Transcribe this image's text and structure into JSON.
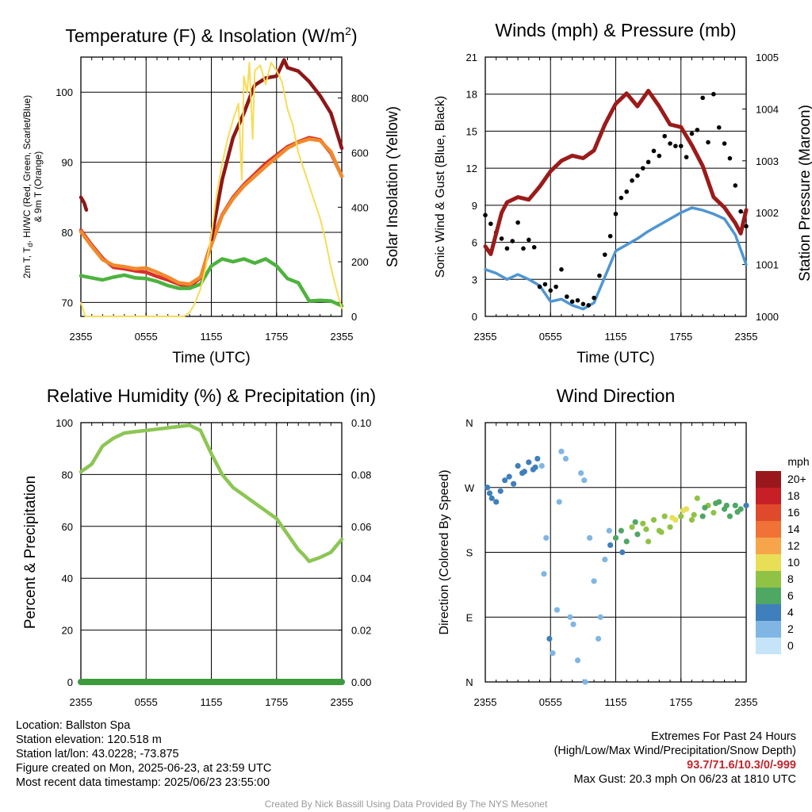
{
  "colors": {
    "red": "#d9302c",
    "green": "#4db33e",
    "scarlet": "#8e1717",
    "blue_hi": "#4a7fc1",
    "orange": "#f08a2c",
    "yellow": "#f7dc56",
    "maroon": "#9b1b1b",
    "wind_blue": "#4f96d2",
    "gust_black": "#000000",
    "rh_green": "#8cc653",
    "precip_green": "#3d9a3d"
  },
  "chart_data": [
    {
      "id": "temperature",
      "type": "line",
      "title": "Temperature (F) & Insolation (W/m²)",
      "title_main": "Temperature (F) & Insolation (W/m",
      "title_sup": "2",
      "xlabel": "Time (UTC)",
      "ylabel_lines": [
        "2m T, T",
        "d",
        ", HI/WC (Red, Green, Scarlet/Blue)",
        "& 9m T (Orange)"
      ],
      "y2label": "Solar Insolation (Yellow)",
      "x_ticks": [
        "2355",
        "0555",
        "1155",
        "1755",
        "2355"
      ],
      "x_range_hours": [
        0,
        24
      ],
      "ylim": [
        68,
        105
      ],
      "y_ticks": [
        70,
        80,
        90,
        100
      ],
      "y2lim": [
        0,
        950
      ],
      "y2_ticks": [
        0,
        200,
        400,
        600,
        800
      ],
      "grid": true,
      "series": [
        {
          "key": "temp_2m",
          "color": "red",
          "x": [
            0,
            1,
            2,
            3,
            4,
            5,
            6,
            7,
            8,
            9,
            10,
            11,
            12,
            13,
            14,
            15,
            16,
            17,
            18,
            19,
            20,
            21,
            22,
            23,
            24
          ],
          "y": [
            80.3,
            78.2,
            76.3,
            75,
            74.8,
            74.5,
            74.3,
            73.7,
            73.2,
            72.6,
            72.2,
            73.5,
            78.5,
            82.5,
            85,
            86.8,
            88.3,
            89.8,
            91,
            92.2,
            92.9,
            93.5,
            93.2,
            91.3,
            88
          ]
        },
        {
          "key": "temp_9m",
          "color": "orange",
          "x": [
            0,
            1,
            2,
            3,
            4,
            5,
            6,
            7,
            8,
            9,
            10,
            11,
            12,
            13,
            14,
            15,
            16,
            17,
            18,
            19,
            20,
            21,
            22,
            23,
            24
          ],
          "y": [
            80.1,
            78,
            76.1,
            75.3,
            75.1,
            74.8,
            74.9,
            74.3,
            73.6,
            72.8,
            72.6,
            73.6,
            78.2,
            82.4,
            84.8,
            86.6,
            88,
            89.4,
            90.7,
            92,
            92.8,
            93.3,
            93.1,
            91.5,
            88
          ]
        },
        {
          "key": "dewpoint",
          "color": "green",
          "x": [
            0,
            1,
            2,
            3,
            4,
            5,
            6,
            7,
            8,
            9,
            10,
            11,
            12,
            13,
            14,
            15,
            16,
            17,
            18,
            19,
            20,
            21,
            22,
            23,
            24
          ],
          "y": [
            73.8,
            73.5,
            73.2,
            73.6,
            73.9,
            73.5,
            73.4,
            73,
            72.4,
            72,
            72,
            72.6,
            75.2,
            76.2,
            75.8,
            76.2,
            75.6,
            76.2,
            75.2,
            73.4,
            72.8,
            70.2,
            70.3,
            70.2,
            69.5
          ]
        },
        {
          "key": "heat_index",
          "color": "scarlet",
          "x": [
            12,
            13,
            14,
            15,
            15.8,
            16,
            17,
            18,
            18.7,
            19,
            20,
            21,
            22,
            23,
            24
          ],
          "y": [
            79,
            87.5,
            93.5,
            97,
            100.3,
            101,
            102,
            102.3,
            104.6,
            103.5,
            103,
            101.5,
            99.5,
            97,
            92
          ]
        },
        {
          "key": "wind_chill",
          "color": "scarlet",
          "x": [
            0,
            0.3,
            0.5
          ],
          "y": [
            85,
            84.2,
            83.2
          ]
        },
        {
          "key": "insolation",
          "color": "yellow",
          "y_axis": "secondary",
          "x": [
            0,
            0.4,
            1,
            2,
            3,
            4,
            5,
            6,
            7,
            8,
            9,
            9.5,
            10,
            10.4,
            11,
            11.5,
            12,
            12.5,
            13,
            13.5,
            14,
            14.5,
            14.8,
            15,
            15.3,
            15.5,
            15.8,
            16,
            16.5,
            17,
            17.5,
            18,
            18.5,
            19,
            19.5,
            20,
            20.5,
            21,
            21.5,
            22,
            22.5,
            23,
            23.5,
            24
          ],
          "y": [
            50,
            0,
            0,
            0,
            0,
            0,
            0,
            0,
            0,
            0,
            0,
            0,
            15,
            40,
            100,
            180,
            300,
            450,
            560,
            650,
            720,
            780,
            500,
            880,
            820,
            930,
            650,
            900,
            920,
            850,
            930,
            900,
            860,
            760,
            700,
            600,
            540,
            480,
            420,
            360,
            280,
            180,
            100,
            30
          ]
        }
      ]
    },
    {
      "id": "winds",
      "type": "line",
      "title": "Winds (mph) & Pressure (mb)",
      "xlabel": "Time (UTC)",
      "ylabel": "Sonic Wind & Gust (Blue, Black)",
      "y2label": "Station Pressure (Maroon)",
      "x_ticks": [
        "2355",
        "0555",
        "1155",
        "1755",
        "2355"
      ],
      "x_range_hours": [
        0,
        24
      ],
      "ylim": [
        0,
        21
      ],
      "y_ticks": [
        0,
        3,
        6,
        9,
        12,
        15,
        18,
        21
      ],
      "y2lim": [
        1000,
        1005
      ],
      "y2_ticks": [
        1000,
        1001,
        1002,
        1003,
        1004,
        1005
      ],
      "grid": true,
      "series": [
        {
          "key": "wind",
          "color": "wind_blue",
          "x": [
            0,
            1,
            2,
            3,
            4,
            5,
            6,
            7,
            8,
            9,
            10,
            11,
            12,
            13,
            14,
            15,
            16,
            17,
            18,
            19,
            20,
            21,
            22,
            23,
            24
          ],
          "y": [
            3.8,
            3.5,
            3,
            3.4,
            3,
            2.5,
            1.2,
            1.4,
            0.9,
            0.6,
            1.1,
            3.2,
            5.3,
            5.8,
            6.3,
            6.9,
            7.4,
            7.9,
            8.4,
            8.8,
            8.6,
            8.3,
            7.9,
            6.6,
            4.2
          ]
        },
        {
          "key": "gust",
          "color": "gust_black",
          "kind": "points",
          "x": [
            0,
            0.5,
            1,
            1.5,
            2,
            2.5,
            3,
            3.5,
            4,
            4.5,
            5,
            5.5,
            6,
            6.5,
            7,
            7.5,
            8,
            8.5,
            9,
            9.5,
            10,
            10.5,
            11,
            11.5,
            12,
            12.5,
            13,
            13.5,
            14,
            14.5,
            15,
            15.5,
            16,
            16.5,
            17,
            17.5,
            18,
            18.5,
            19,
            19.5,
            20,
            20.5,
            21,
            21.5,
            22,
            22.5,
            23,
            23.5,
            24
          ],
          "y": [
            8.2,
            7.5,
            6.8,
            6.3,
            5.5,
            6.1,
            7.6,
            5.5,
            6.2,
            5.6,
            2.4,
            2.6,
            2.1,
            2.4,
            3.8,
            1.6,
            1.2,
            1.3,
            1.0,
            0.9,
            1.5,
            3.3,
            5.0,
            6.5,
            8.3,
            9.6,
            10.1,
            11,
            11.4,
            12,
            12.5,
            13.4,
            13,
            14.6,
            14,
            13.8,
            13.8,
            12.9,
            14.8,
            15.1,
            17.7,
            14.1,
            18,
            15.3,
            14,
            12.8,
            10.6,
            8.5,
            7.3
          ]
        },
        {
          "key": "pressure",
          "color": "maroon",
          "y_axis": "secondary",
          "x": [
            0,
            0.5,
            1,
            1.5,
            2,
            3,
            4,
            5,
            6,
            7,
            8,
            9,
            10,
            11,
            12,
            13,
            14,
            15,
            16,
            17,
            18,
            19,
            20,
            21,
            22,
            23,
            23.5,
            24
          ],
          "y": [
            1001.35,
            1001.2,
            1001.6,
            1002.0,
            1002.2,
            1002.3,
            1002.25,
            1002.5,
            1002.8,
            1003.0,
            1003.1,
            1003.05,
            1003.2,
            1003.7,
            1004.1,
            1004.3,
            1004.05,
            1004.35,
            1004.05,
            1003.7,
            1003.65,
            1003.3,
            1002.9,
            1002.3,
            1002.1,
            1001.8,
            1001.6,
            1002.05
          ]
        }
      ]
    },
    {
      "id": "humidity",
      "type": "line",
      "title": "Relative Humidity (%) & Precipitation (in)",
      "xlabel": "",
      "ylabel": "Percent & Precipitation",
      "x_ticks": [
        "2355",
        "0555",
        "1155",
        "1755",
        "2355"
      ],
      "x_range_hours": [
        0,
        24
      ],
      "ylim": [
        0,
        100
      ],
      "y_ticks": [
        0,
        20,
        40,
        60,
        80,
        100
      ],
      "y2lim": [
        0,
        0.1
      ],
      "y2_ticks": [
        "0.00",
        "0.02",
        "0.04",
        "0.06",
        "0.08",
        "0.10"
      ],
      "grid": true,
      "series": [
        {
          "key": "rh",
          "color": "rh_green",
          "x": [
            0,
            1,
            2,
            3,
            4,
            5,
            6,
            7,
            8,
            9,
            10,
            11,
            12,
            13,
            14,
            15,
            16,
            17,
            18,
            19,
            20,
            20.5,
            21,
            22,
            23,
            24
          ],
          "y": [
            81,
            84,
            91,
            94,
            96,
            96.5,
            97,
            97.5,
            98,
            98.5,
            99,
            97,
            88,
            80,
            75,
            72,
            69,
            66,
            63,
            57,
            51,
            49,
            46.5,
            48,
            50,
            55
          ]
        },
        {
          "key": "precip",
          "color": "precip_green",
          "x": [
            0,
            24
          ],
          "y": [
            0,
            0
          ]
        }
      ]
    },
    {
      "id": "direction",
      "type": "scatter",
      "title": "Wind Direction",
      "xlabel": "",
      "ylabel": "Direction (Colored By Speed)",
      "x_ticks": [
        "2355",
        "0555",
        "1155",
        "1755",
        "2355"
      ],
      "x_range_hours": [
        0,
        24
      ],
      "y_ticks": [
        "N",
        "E",
        "S",
        "W",
        "N"
      ],
      "ylim_deg": [
        0,
        360
      ],
      "grid": true,
      "legend_title": "mph",
      "legend_labels": [
        "20+",
        "18",
        "16",
        "14",
        "12",
        "10",
        "8",
        "6",
        "4",
        "2",
        "0"
      ],
      "legend_colors": [
        "#98181c",
        "#c61f26",
        "#e04a2c",
        "#f07236",
        "#f7a54a",
        "#e8df57",
        "#90c245",
        "#4fa764",
        "#3f7fbc",
        "#7fb6e4",
        "#c5e4f7"
      ],
      "x": [
        0.2,
        0.6,
        1.0,
        1.4,
        2.2,
        2.6,
        3.0,
        3.4,
        4.0,
        4.4,
        4.8,
        5.2,
        5.6,
        5.9,
        6.2,
        6.6,
        7.0,
        7.4,
        7.8,
        8.1,
        8.5,
        8.8,
        9.1,
        9.6,
        10.0,
        10.4,
        11.0,
        11.5,
        12.0,
        12.5,
        13.0,
        13.5,
        14.0,
        14.5,
        15.0,
        15.5,
        16.0,
        16.5,
        17.0,
        17.5,
        18.0,
        18.5,
        19.0,
        19.5,
        20.0,
        20.5,
        21.0,
        21.5,
        22.0,
        22.5,
        23.0,
        23.5,
        24.0,
        0.4,
        1.8,
        3.6,
        4.6,
        5.4,
        6.8,
        9.2,
        10.6,
        11.4,
        12.6,
        13.8,
        14.8,
        16.2,
        17.2,
        18.2,
        19.2,
        20.2,
        21.2,
        22.2,
        23.2
      ],
      "y": [
        270,
        255,
        250,
        265,
        285,
        275,
        300,
        290,
        305,
        295,
        310,
        300,
        200,
        60,
        40,
        100,
        320,
        310,
        90,
        80,
        30,
        290,
        280,
        200,
        140,
        60,
        170,
        190,
        200,
        210,
        195,
        215,
        205,
        220,
        195,
        225,
        210,
        230,
        215,
        225,
        230,
        240,
        225,
        255,
        230,
        245,
        235,
        250,
        240,
        230,
        245,
        240,
        245,
        262,
        280,
        292,
        298,
        150,
        250,
        0,
        90,
        210,
        180,
        222,
        212,
        208,
        228,
        238,
        232,
        242,
        248,
        245,
        236
      ],
      "speed": [
        4,
        4,
        3,
        4,
        4,
        3,
        4,
        3,
        4,
        4,
        3,
        2,
        2,
        3,
        2,
        1,
        1,
        2,
        2,
        1,
        1,
        2,
        1,
        1,
        1,
        1,
        2,
        3,
        5,
        6,
        6,
        7,
        6,
        7,
        8,
        7,
        8,
        7,
        8,
        9,
        8,
        10,
        7,
        8,
        6,
        7,
        7,
        6,
        5,
        6,
        6,
        5,
        4,
        4,
        4,
        3,
        4,
        1,
        2,
        1,
        1,
        2,
        3,
        6,
        7,
        8,
        9,
        10,
        7,
        6,
        5,
        5,
        5
      ]
    }
  ],
  "footer": {
    "location": "Location: Ballston Spa",
    "elevation": "Station elevation: 120.518 m",
    "latlon": "Station lat/lon: 43.0228; -73.875",
    "created": "Figure created on Mon, 2025-06-23, at 23:59 UTC",
    "recent": "Most recent data timestamp: 2025/06/23 23:55:00",
    "extremes_title": "Extremes For Past 24 Hours",
    "extremes_subtitle": "(High/Low/Max Wind/Precipitation/Snow Depth)",
    "extremes_values": "93.7/71.6/10.3/0/-999",
    "max_gust": "Max Gust: 20.3 mph On 06/23 at 1810 UTC",
    "credit": "Created By Nick Bassill Using Data Provided By The NYS Mesonet"
  }
}
